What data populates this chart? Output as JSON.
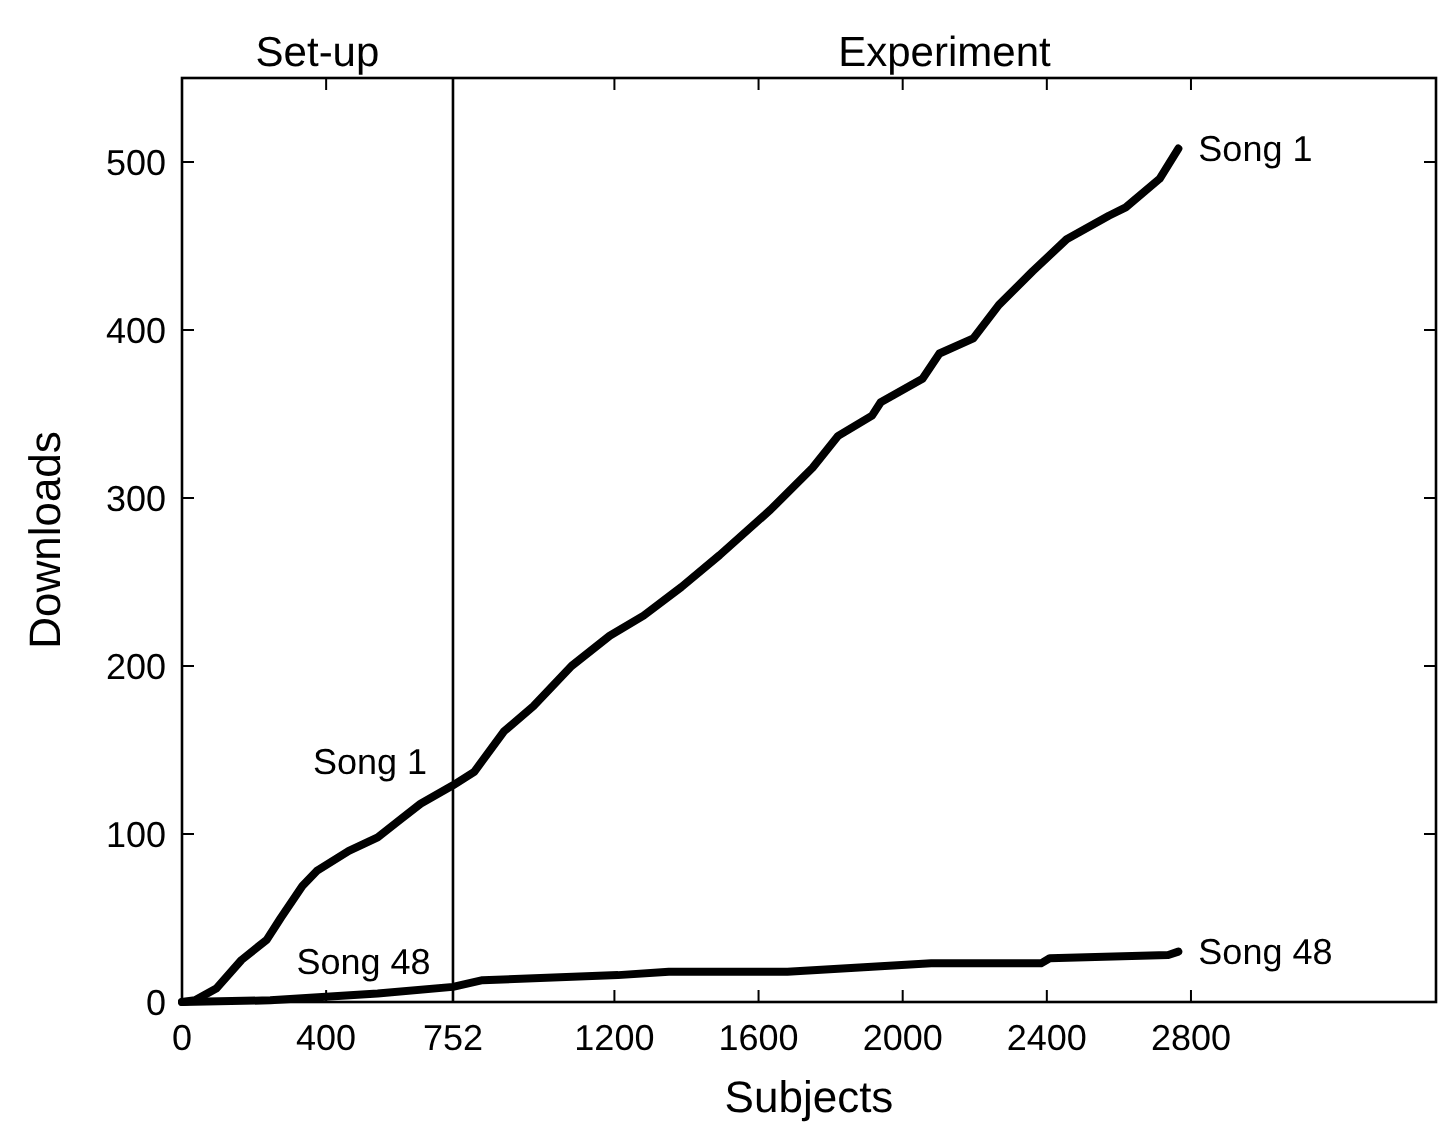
{
  "chart_data": {
    "type": "line",
    "xlabel": "Subjects",
    "ylabel": "Downloads",
    "xlim": [
      0,
      3480
    ],
    "ylim": [
      0,
      550
    ],
    "xticks": [
      0,
      400,
      752,
      1200,
      1600,
      2000,
      2400,
      2800
    ],
    "yticks": [
      0,
      100,
      200,
      300,
      400,
      500
    ],
    "grid": false,
    "marker": "none",
    "line_style": "solid",
    "ref_lines": [
      {
        "axis": "x",
        "value": 752,
        "color": "#000000"
      }
    ],
    "annotations": [
      "Set-up",
      "Experiment",
      {
        "text": "Song 1",
        "x": 680,
        "y": 127
      },
      {
        "text": "Song 48",
        "x": 690,
        "y": 8
      }
    ],
    "series": [
      {
        "name": "Song 1",
        "color": "#000000",
        "x": [
          0,
          36,
          95,
          165,
          235,
          274,
          334,
          374,
          463,
          543,
          602,
          662,
          752,
          811,
          893,
          975,
          1081,
          1187,
          1281,
          1386,
          1492,
          1633,
          1750,
          1821,
          1915,
          1939,
          2055,
          2102,
          2196,
          2267,
          2361,
          2455,
          2572,
          2619,
          2713,
          2765
        ],
        "values": [
          0,
          1,
          8,
          25,
          37,
          50,
          69,
          78,
          90,
          98,
          108,
          118,
          129,
          137,
          161,
          176,
          200,
          218,
          230,
          247,
          266,
          293,
          318,
          337,
          349,
          357,
          371,
          386,
          395,
          415,
          435,
          454,
          468,
          473,
          490,
          508
        ]
      },
      {
        "name": "Song 48",
        "color": "#000000",
        "x": [
          0,
          245,
          543,
          752,
          834,
          1210,
          1351,
          1680,
          1915,
          2079,
          2384,
          2408,
          2737,
          2765
        ],
        "values": [
          0,
          1,
          5,
          9,
          13,
          16,
          18,
          18,
          21,
          23,
          23,
          26,
          28,
          30
        ]
      }
    ]
  }
}
